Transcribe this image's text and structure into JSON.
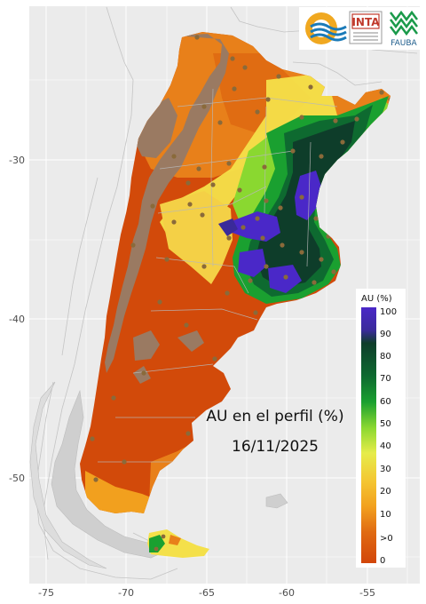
{
  "title_line1": "AU en el perfil (%)",
  "title_line2": "16/11/2025",
  "x_axis": {
    "ticks": [
      "-75",
      "-70",
      "-65",
      "-60",
      "-55"
    ]
  },
  "y_axis": {
    "ticks": [
      "-30",
      "-40",
      "-50"
    ]
  },
  "legend": {
    "title": "AU (%)",
    "labels": [
      "100",
      "90",
      "80",
      "70",
      "60",
      "50",
      "40",
      "30",
      "20",
      "10",
      ">0",
      "0"
    ]
  },
  "logos": {
    "inta": "INTA",
    "fauba": "FAUBA"
  },
  "colors": {
    "panel_bg": "#ebebeb",
    "grid": "#ffffff",
    "water": "#4a28c8",
    "dark_green": "#0e3d2a",
    "green": "#138a3c",
    "yellow": "#f4e04a",
    "orange": "#e8801a",
    "red_orange": "#d24a0a",
    "mountain": "#9a7a62",
    "station": "#8a6a3a"
  }
}
